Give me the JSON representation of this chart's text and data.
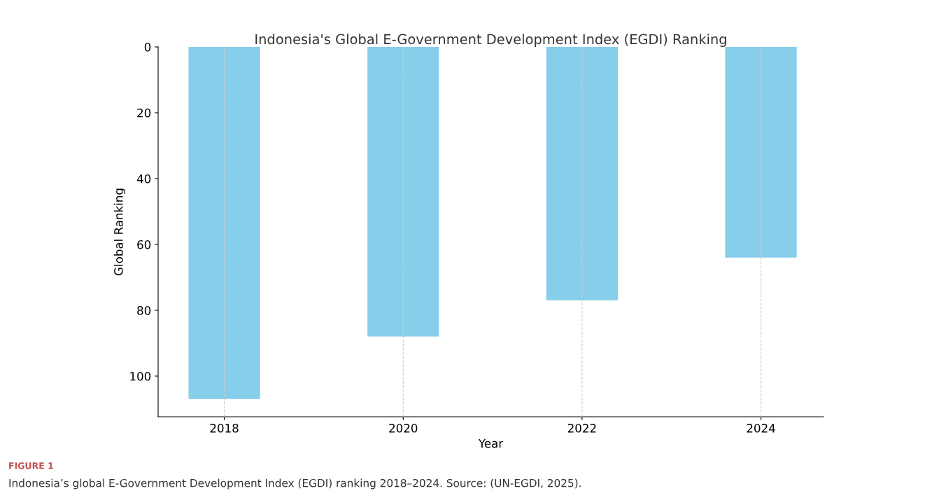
{
  "chart_data": {
    "type": "bar",
    "title": "Indonesia's Global E-Government Development Index (EGDI) Ranking",
    "xlabel": "Year",
    "ylabel": "Global Ranking",
    "categories": [
      "2018",
      "2020",
      "2022",
      "2024"
    ],
    "values": [
      107,
      88,
      77,
      64
    ],
    "color": "#87ceeb",
    "ylim": [
      112.35,
      0
    ],
    "yticks": [
      0,
      20,
      40,
      60,
      80,
      100
    ],
    "grid": "x",
    "annotations": [
      "FIGURE 1",
      "Indonesia’s global E-Government Development Index (EGDI) ranking 2018–2024. Source: (UN-EGDI, 2025)."
    ]
  }
}
